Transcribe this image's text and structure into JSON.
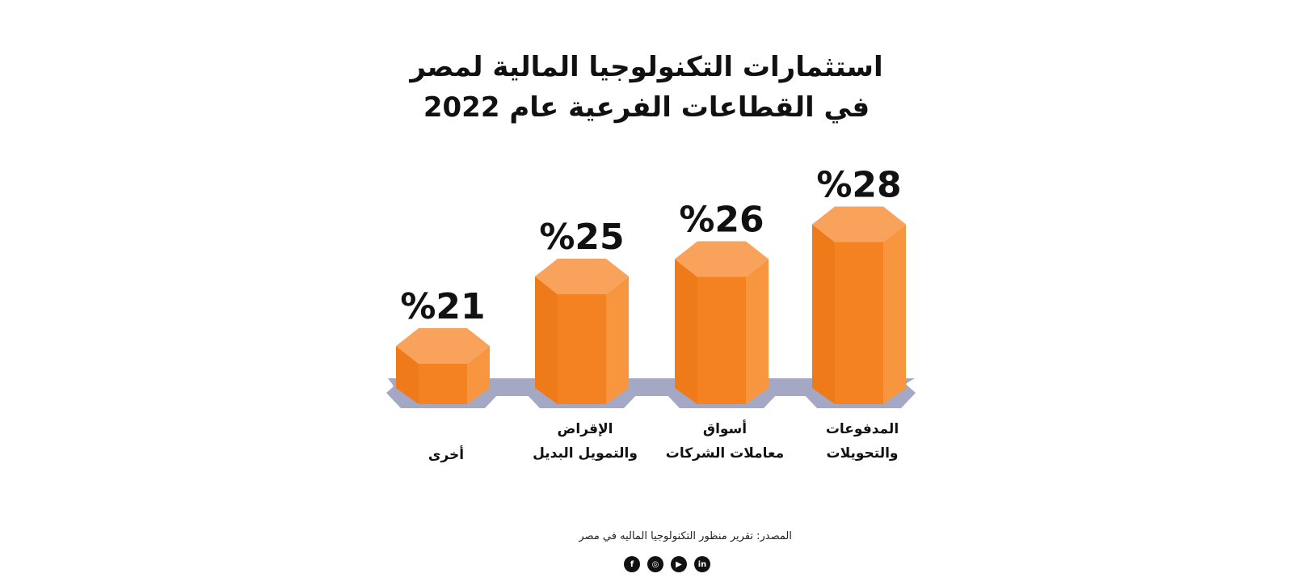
{
  "chart_data": {
    "type": "bar",
    "title_lines": [
      "استثمارات التكنولوجيا المالية لمصر",
      "في القطاعات الفرعية عام 2022"
    ],
    "categories": [
      [
        "أخرى"
      ],
      [
        "الإقراض",
        "والتمويل البديل"
      ],
      [
        "أسواق",
        "معاملات الشركات"
      ],
      [
        "المدفوعات",
        "والتحويلات"
      ]
    ],
    "values": [
      21,
      25,
      26,
      28
    ],
    "value_labels": [
      "%21",
      "%25",
      "%26",
      "%28"
    ],
    "ylim": [
      0,
      28
    ],
    "colors": {
      "bar_front": "#F58220",
      "bar_left": "#EF7A1A",
      "bar_right": "#F7963F",
      "bar_top": "#F9A25B",
      "base_band": "#A4A8C4"
    }
  },
  "source": "المصدر: تقرير منظور التكنولوجيا الماليه في مصر",
  "social_icons": [
    {
      "name": "facebook-icon",
      "glyph": "f"
    },
    {
      "name": "instagram-icon",
      "glyph": "◎"
    },
    {
      "name": "youtube-icon",
      "glyph": "▶"
    },
    {
      "name": "linkedin-icon",
      "glyph": "in"
    }
  ]
}
